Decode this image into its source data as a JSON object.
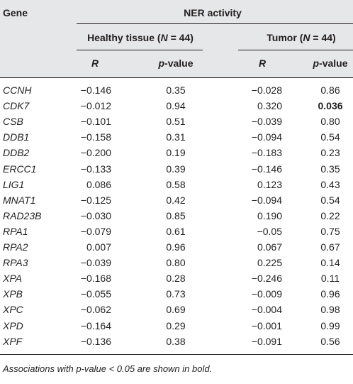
{
  "table": {
    "header": {
      "gene": "Gene",
      "group_title": "NER activity",
      "healthy": {
        "prefix": "Healthy tissue (",
        "n_var": "N",
        "suffix": " = 44)"
      },
      "tumor": {
        "prefix": "Tumor (",
        "n_var": "N",
        "suffix": " = 44)"
      },
      "r": "R",
      "p_var": "p",
      "p_suffix": "-value"
    },
    "rows": [
      {
        "gene": "CCNH",
        "h_r": "−0.146",
        "h_p": "0.35",
        "t_r": "−0.028",
        "t_p": "0.86",
        "t_p_bold": false
      },
      {
        "gene": "CDK7",
        "h_r": "−0.012",
        "h_p": "0.94",
        "t_r": "0.320",
        "t_p": "0.036",
        "t_p_bold": true
      },
      {
        "gene": "CSB",
        "h_r": "−0.101",
        "h_p": "0.51",
        "t_r": "−0.039",
        "t_p": "0.80",
        "t_p_bold": false
      },
      {
        "gene": "DDB1",
        "h_r": "−0.158",
        "h_p": "0.31",
        "t_r": "−0.094",
        "t_p": "0.54",
        "t_p_bold": false
      },
      {
        "gene": "DDB2",
        "h_r": "−0.200",
        "h_p": "0.19",
        "t_r": "−0.183",
        "t_p": "0.23",
        "t_p_bold": false
      },
      {
        "gene": "ERCC1",
        "h_r": "−0.133",
        "h_p": "0.39",
        "t_r": "−0.146",
        "t_p": "0.35",
        "t_p_bold": false
      },
      {
        "gene": "LIG1",
        "h_r": "0.086",
        "h_p": "0.58",
        "t_r": "0.123",
        "t_p": "0.43",
        "t_p_bold": false
      },
      {
        "gene": "MNAT1",
        "h_r": "−0.125",
        "h_p": "0.42",
        "t_r": "−0.094",
        "t_p": "0.54",
        "t_p_bold": false
      },
      {
        "gene": "RAD23B",
        "h_r": "−0.030",
        "h_p": "0.85",
        "t_r": "0.190",
        "t_p": "0.22",
        "t_p_bold": false
      },
      {
        "gene": "RPA1",
        "h_r": "−0.079",
        "h_p": "0.61",
        "t_r": "−0.05",
        "t_p": "0.75",
        "t_p_bold": false
      },
      {
        "gene": "RPA2",
        "h_r": "0.007",
        "h_p": "0.96",
        "t_r": "0.067",
        "t_p": "0.67",
        "t_p_bold": false
      },
      {
        "gene": "RPA3",
        "h_r": "−0.039",
        "h_p": "0.80",
        "t_r": "0.225",
        "t_p": "0.14",
        "t_p_bold": false
      },
      {
        "gene": "XPA",
        "h_r": "−0.168",
        "h_p": "0.28",
        "t_r": "−0.246",
        "t_p": "0.11",
        "t_p_bold": false
      },
      {
        "gene": "XPB",
        "h_r": "−0.055",
        "h_p": "0.73",
        "t_r": "−0.009",
        "t_p": "0.96",
        "t_p_bold": false
      },
      {
        "gene": "XPC",
        "h_r": "−0.062",
        "h_p": "0.69",
        "t_r": "−0.004",
        "t_p": "0.98",
        "t_p_bold": false
      },
      {
        "gene": "XPD",
        "h_r": "−0.164",
        "h_p": "0.29",
        "t_r": "−0.001",
        "t_p": "0.99",
        "t_p_bold": false
      },
      {
        "gene": "XPF",
        "h_r": "−0.136",
        "h_p": "0.38",
        "t_r": "−0.091",
        "t_p": "0.56",
        "t_p_bold": false
      }
    ],
    "footnote": "Associations with p-value < 0.05 are shown in bold."
  },
  "colors": {
    "header_band": "#e6e7e8",
    "text": "#231f20",
    "rule": "#231f20"
  }
}
